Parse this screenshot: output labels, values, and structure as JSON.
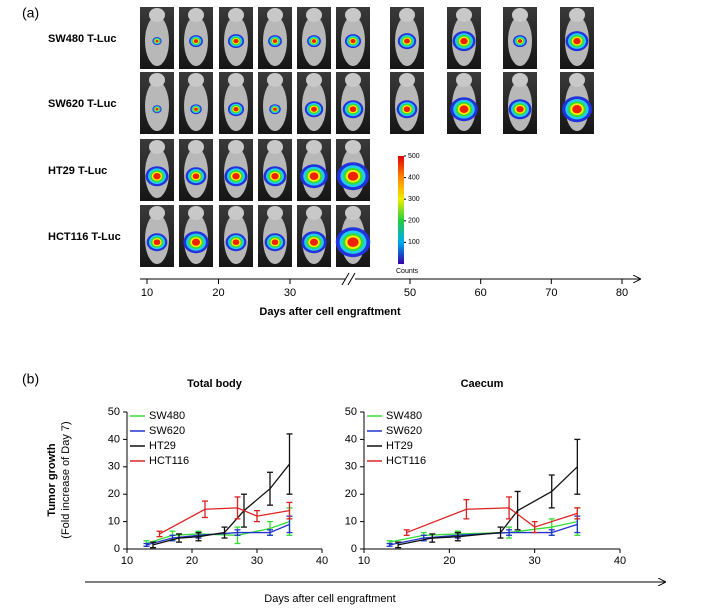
{
  "figure": {
    "panel_a": {
      "label": "(a)",
      "rows": [
        "SW480 T-Luc",
        "SW620 T-Luc",
        "HT29 T-Luc",
        "HCT116 T-Luc"
      ],
      "xticks": [
        10,
        20,
        30,
        50,
        60,
        70,
        80
      ],
      "xlabel": "Days after cell engraftment",
      "colorbar": {
        "lim": [
          0,
          500
        ],
        "ticks": [
          100,
          200,
          300,
          400,
          500
        ],
        "label": "Counts"
      }
    },
    "panel_b": {
      "label": "(b)",
      "ylabel": "Tumor growth",
      "ylabel_sub": "(Fold increase of Day 7)",
      "xlabel": "Days after cell engraftment"
    }
  },
  "chart_data": [
    {
      "type": "line",
      "title": "Total body",
      "xlim": [
        10,
        40
      ],
      "ylim": [
        0,
        50
      ],
      "xticks": [
        10,
        20,
        30,
        40
      ],
      "yticks": [
        0,
        10,
        20,
        30,
        40,
        50
      ],
      "legend": "upper left",
      "series": [
        {
          "name": "SW480",
          "color": "#33dd33",
          "x": [
            13,
            17,
            21,
            27,
            32,
            35
          ],
          "values": [
            2,
            5,
            5.5,
            5,
            7.5,
            10
          ],
          "errors": [
            1,
            1.5,
            1,
            3,
            2.5,
            5
          ]
        },
        {
          "name": "SW620",
          "color": "#2233cc",
          "x": [
            13,
            17,
            21,
            27,
            32,
            35
          ],
          "values": [
            1.5,
            4,
            5,
            6,
            6,
            9
          ],
          "errors": [
            0.5,
            1,
            1,
            1,
            1,
            3
          ]
        },
        {
          "name": "HT29",
          "color": "#111111",
          "x": [
            14,
            18,
            21,
            25,
            28,
            32,
            35
          ],
          "values": [
            1.5,
            4,
            4.5,
            6,
            14,
            22,
            31
          ],
          "errors": [
            1,
            1.5,
            1.5,
            2,
            6,
            6,
            11
          ]
        },
        {
          "name": "HCT116",
          "color": "#dd2222",
          "x": [
            15,
            22,
            27,
            30,
            35
          ],
          "values": [
            5.5,
            14.5,
            15,
            12,
            14
          ],
          "errors": [
            1,
            3,
            4,
            2,
            3
          ]
        }
      ]
    },
    {
      "type": "line",
      "title": "Caecum",
      "xlim": [
        10,
        40
      ],
      "ylim": [
        0,
        50
      ],
      "xticks": [
        10,
        20,
        30,
        40
      ],
      "yticks": [
        0,
        10,
        20,
        30,
        40,
        50
      ],
      "legend": "upper left",
      "series": [
        {
          "name": "SW480",
          "color": "#33dd33",
          "x": [
            13,
            17,
            21,
            27,
            32,
            35
          ],
          "values": [
            2.5,
            5,
            5.5,
            6,
            8,
            10
          ],
          "errors": [
            0.5,
            1,
            1,
            2,
            3,
            5
          ]
        },
        {
          "name": "SW620",
          "color": "#2233cc",
          "x": [
            13,
            17,
            21,
            27,
            32,
            35
          ],
          "values": [
            1.5,
            4,
            5,
            6,
            6,
            9
          ],
          "errors": [
            0.5,
            1,
            1,
            1,
            1,
            3
          ]
        },
        {
          "name": "HT29",
          "color": "#111111",
          "x": [
            14,
            18,
            21,
            26,
            28,
            32,
            35
          ],
          "values": [
            1.5,
            4,
            4.5,
            6,
            14,
            21,
            30
          ],
          "errors": [
            1,
            1.5,
            1.5,
            2,
            7,
            6,
            10
          ]
        },
        {
          "name": "HCT116",
          "color": "#dd2222",
          "x": [
            15,
            22,
            27,
            30,
            35
          ],
          "values": [
            6,
            14.5,
            15,
            8,
            13
          ],
          "errors": [
            1,
            3.5,
            4,
            2,
            2
          ]
        }
      ]
    }
  ]
}
